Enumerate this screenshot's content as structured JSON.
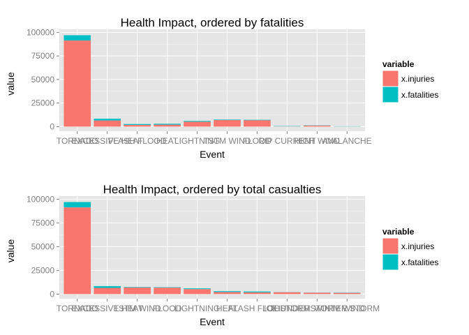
{
  "chart_data": [
    {
      "type": "bar",
      "stacked": true,
      "title": "Health Impact, ordered by fatalities",
      "xlabel": "Event",
      "ylabel": "value",
      "categories": [
        "TORNADO",
        "EXCESSIVE HEAT",
        "FLASH FLOOD",
        "HEAT",
        "LIGHTNING",
        "TSTM WIND",
        "FLOOD",
        "RIP CURRENT",
        "HIGH WIND",
        "AVALANCHE"
      ],
      "series": [
        {
          "name": "x.injuries",
          "color": "#F8766D",
          "values": [
            91346,
            6525,
            1777,
            2100,
            5230,
            6957,
            6789,
            232,
            1137,
            170
          ]
        },
        {
          "name": "x.fatalities",
          "color": "#00BFC4",
          "values": [
            5633,
            1903,
            978,
            937,
            816,
            504,
            470,
            368,
            248,
            224
          ]
        }
      ],
      "ylim": [
        0,
        100000
      ],
      "yticks": [
        "0",
        "25000",
        "50000",
        "75000",
        "100000"
      ],
      "grid": true,
      "legend": {
        "title": "variable",
        "position": "right"
      }
    },
    {
      "type": "bar",
      "stacked": true,
      "title": "Health Impact, ordered by total casualties",
      "xlabel": "Event",
      "ylabel": "value",
      "categories": [
        "TORNADO",
        "EXCESSIVE HEAT",
        "TSTM WIND",
        "FLOOD",
        "LIGHTNING",
        "HEAT",
        "FLASH FLOOD",
        "ICE STORM",
        "THUNDERSTORM WIND",
        "WINTER STORM"
      ],
      "series": [
        {
          "name": "x.injuries",
          "color": "#F8766D",
          "values": [
            91346,
            6525,
            6957,
            6789,
            5230,
            2100,
            1777,
            1975,
            1488,
            1321
          ]
        },
        {
          "name": "x.fatalities",
          "color": "#00BFC4",
          "values": [
            5633,
            1903,
            504,
            470,
            816,
            937,
            978,
            89,
            133,
            206
          ]
        }
      ],
      "ylim": [
        0,
        100000
      ],
      "yticks": [
        "0",
        "25000",
        "50000",
        "75000",
        "100000"
      ],
      "grid": true,
      "legend": {
        "title": "variable",
        "position": "right"
      }
    }
  ]
}
